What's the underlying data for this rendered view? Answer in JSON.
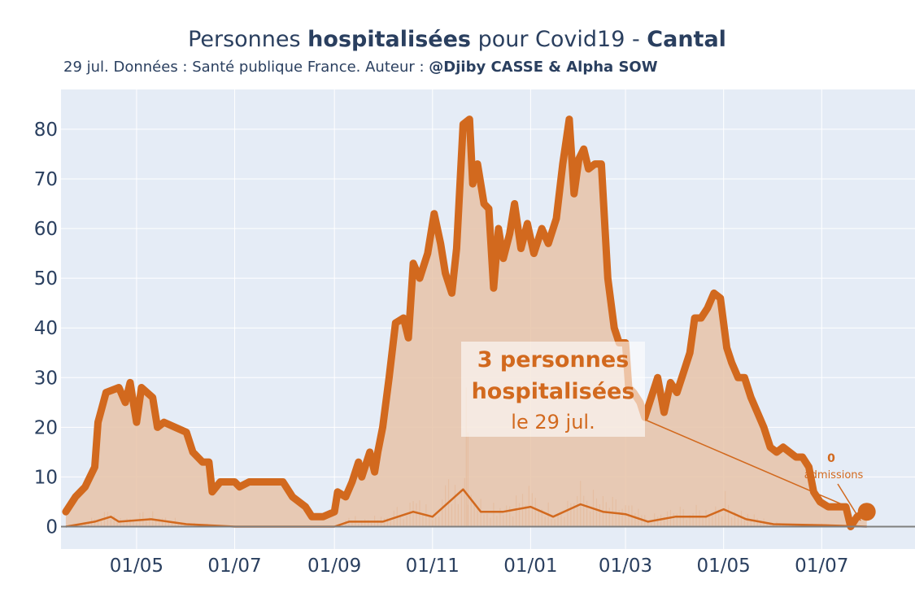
{
  "title": {
    "part1": "Personnes ",
    "bold1": "hospitalisées",
    "part2": " pour Covid19 - ",
    "bold2": "Cantal"
  },
  "subtitle": {
    "text": "29 jul. Données : Santé publique France. Auteur : ",
    "author": "@Djiby CASSE & Alpha SOW"
  },
  "annotation_main": {
    "line1": "3 personnes",
    "line2": "hospitalisées",
    "line3": "le 29 jul."
  },
  "annotation_admissions": {
    "value": "0",
    "label": "admissions"
  },
  "colors": {
    "main": "#d2691e",
    "fill": "#e8c3a8",
    "background": "#e5ecf6",
    "grid": "#ffffff",
    "text": "#2a3f5f",
    "zeroline": "#7f7f7f"
  },
  "chart_data": {
    "type": "line",
    "x_tick_labels": [
      "01/05",
      "01/07",
      "01/09",
      "01/11",
      "01/01",
      "01/03",
      "01/05",
      "01/07"
    ],
    "x_tick_dates": [
      "2020-05-01",
      "2020-07-01",
      "2020-09-01",
      "2020-11-01",
      "2021-01-01",
      "2021-03-01",
      "2021-05-01",
      "2021-07-01"
    ],
    "ylim": [
      -4.5,
      88
    ],
    "y_ticks": [
      0,
      10,
      20,
      30,
      40,
      50,
      60,
      70,
      80
    ],
    "grid": true,
    "series": [
      {
        "values_key": "hospitalisations",
        "points": [
          [
            "2020-03-18",
            3
          ],
          [
            "2020-03-24",
            6
          ],
          [
            "2020-03-30",
            8
          ],
          [
            "2020-04-05",
            12
          ],
          [
            "2020-04-07",
            21
          ],
          [
            "2020-04-12",
            27
          ],
          [
            "2020-04-20",
            28
          ],
          [
            "2020-04-24",
            25
          ],
          [
            "2020-04-27",
            29
          ],
          [
            "2020-05-01",
            21
          ],
          [
            "2020-05-04",
            28
          ],
          [
            "2020-05-11",
            26
          ],
          [
            "2020-05-14",
            20
          ],
          [
            "2020-05-18",
            21
          ],
          [
            "2020-05-25",
            20
          ],
          [
            "2020-06-01",
            19
          ],
          [
            "2020-06-05",
            15
          ],
          [
            "2020-06-11",
            13
          ],
          [
            "2020-06-15",
            13
          ],
          [
            "2020-06-17",
            7
          ],
          [
            "2020-06-22",
            9
          ],
          [
            "2020-07-01",
            9
          ],
          [
            "2020-07-04",
            8
          ],
          [
            "2020-07-10",
            9
          ],
          [
            "2020-07-20",
            9
          ],
          [
            "2020-07-31",
            9
          ],
          [
            "2020-08-06",
            6
          ],
          [
            "2020-08-14",
            4
          ],
          [
            "2020-08-18",
            2
          ],
          [
            "2020-08-25",
            2
          ],
          [
            "2020-09-01",
            3
          ],
          [
            "2020-09-03",
            7
          ],
          [
            "2020-09-08",
            6
          ],
          [
            "2020-09-12",
            9
          ],
          [
            "2020-09-16",
            13
          ],
          [
            "2020-09-18",
            10
          ],
          [
            "2020-09-23",
            15
          ],
          [
            "2020-09-26",
            11
          ],
          [
            "2020-09-28",
            15
          ],
          [
            "2020-10-01",
            20
          ],
          [
            "2020-10-05",
            30
          ],
          [
            "2020-10-09",
            41
          ],
          [
            "2020-10-14",
            42
          ],
          [
            "2020-10-17",
            38
          ],
          [
            "2020-10-20",
            53
          ],
          [
            "2020-10-24",
            50
          ],
          [
            "2020-10-29",
            55
          ],
          [
            "2020-11-02",
            63
          ],
          [
            "2020-11-06",
            57
          ],
          [
            "2020-11-09",
            51
          ],
          [
            "2020-11-13",
            47
          ],
          [
            "2020-11-16",
            56
          ],
          [
            "2020-11-20",
            81
          ],
          [
            "2020-11-24",
            82
          ],
          [
            "2020-11-26",
            69
          ],
          [
            "2020-11-29",
            73
          ],
          [
            "2020-12-03",
            65
          ],
          [
            "2020-12-06",
            64
          ],
          [
            "2020-12-09",
            48
          ],
          [
            "2020-12-12",
            60
          ],
          [
            "2020-12-15",
            54
          ],
          [
            "2020-12-19",
            59
          ],
          [
            "2020-12-22",
            65
          ],
          [
            "2020-12-26",
            56
          ],
          [
            "2020-12-30",
            61
          ],
          [
            "2021-01-03",
            55
          ],
          [
            "2021-01-08",
            60
          ],
          [
            "2021-01-12",
            57
          ],
          [
            "2021-01-17",
            62
          ],
          [
            "2021-01-21",
            73
          ],
          [
            "2021-01-25",
            82
          ],
          [
            "2021-01-28",
            67
          ],
          [
            "2021-01-31",
            74
          ],
          [
            "2021-02-03",
            76
          ],
          [
            "2021-02-06",
            72
          ],
          [
            "2021-02-10",
            73
          ],
          [
            "2021-02-14",
            73
          ],
          [
            "2021-02-18",
            50
          ],
          [
            "2021-02-22",
            40
          ],
          [
            "2021-02-25",
            37
          ],
          [
            "2021-03-01",
            37
          ],
          [
            "2021-03-03",
            28
          ],
          [
            "2021-03-06",
            27
          ],
          [
            "2021-03-10",
            25
          ],
          [
            "2021-03-13",
            22
          ],
          [
            "2021-03-17",
            26
          ],
          [
            "2021-03-21",
            30
          ],
          [
            "2021-03-25",
            23
          ],
          [
            "2021-03-29",
            29
          ],
          [
            "2021-04-02",
            27
          ],
          [
            "2021-04-06",
            31
          ],
          [
            "2021-04-10",
            35
          ],
          [
            "2021-04-13",
            42
          ],
          [
            "2021-04-17",
            42
          ],
          [
            "2021-04-21",
            44
          ],
          [
            "2021-04-25",
            47
          ],
          [
            "2021-04-29",
            46
          ],
          [
            "2021-05-03",
            36
          ],
          [
            "2021-05-06",
            33
          ],
          [
            "2021-05-10",
            30
          ],
          [
            "2021-05-14",
            30
          ],
          [
            "2021-05-18",
            26
          ],
          [
            "2021-05-22",
            23
          ],
          [
            "2021-05-26",
            20
          ],
          [
            "2021-05-30",
            16
          ],
          [
            "2021-06-03",
            15
          ],
          [
            "2021-06-07",
            16
          ],
          [
            "2021-06-11",
            15
          ],
          [
            "2021-06-15",
            14
          ],
          [
            "2021-06-19",
            14
          ],
          [
            "2021-06-23",
            12
          ],
          [
            "2021-06-26",
            7
          ],
          [
            "2021-06-30",
            5
          ],
          [
            "2021-07-05",
            4
          ],
          [
            "2021-07-10",
            4
          ],
          [
            "2021-07-16",
            4
          ],
          [
            "2021-07-19",
            0
          ],
          [
            "2021-07-23",
            2
          ],
          [
            "2021-07-29",
            3
          ]
        ]
      },
      {
        "values_key": "admissions",
        "points": [
          [
            "2020-03-18",
            0
          ],
          [
            "2020-04-05",
            1
          ],
          [
            "2020-04-15",
            2
          ],
          [
            "2020-04-20",
            1
          ],
          [
            "2020-05-10",
            1.5
          ],
          [
            "2020-06-01",
            0.5
          ],
          [
            "2020-07-01",
            0
          ],
          [
            "2020-09-01",
            0
          ],
          [
            "2020-09-10",
            1
          ],
          [
            "2020-10-01",
            1
          ],
          [
            "2020-10-20",
            3
          ],
          [
            "2020-11-01",
            2
          ],
          [
            "2020-11-20",
            7.5
          ],
          [
            "2020-12-01",
            3
          ],
          [
            "2020-12-15",
            3
          ],
          [
            "2021-01-01",
            4
          ],
          [
            "2021-01-15",
            2
          ],
          [
            "2021-02-01",
            4.5
          ],
          [
            "2021-02-15",
            3
          ],
          [
            "2021-03-01",
            2.5
          ],
          [
            "2021-03-15",
            1
          ],
          [
            "2021-04-01",
            2
          ],
          [
            "2021-04-20",
            2
          ],
          [
            "2021-05-01",
            3.5
          ],
          [
            "2021-05-15",
            1.5
          ],
          [
            "2021-06-01",
            0.5
          ],
          [
            "2021-07-01",
            0.3
          ],
          [
            "2021-07-29",
            0
          ]
        ]
      }
    ],
    "last_value": 3,
    "last_date": "2021-07-29"
  }
}
